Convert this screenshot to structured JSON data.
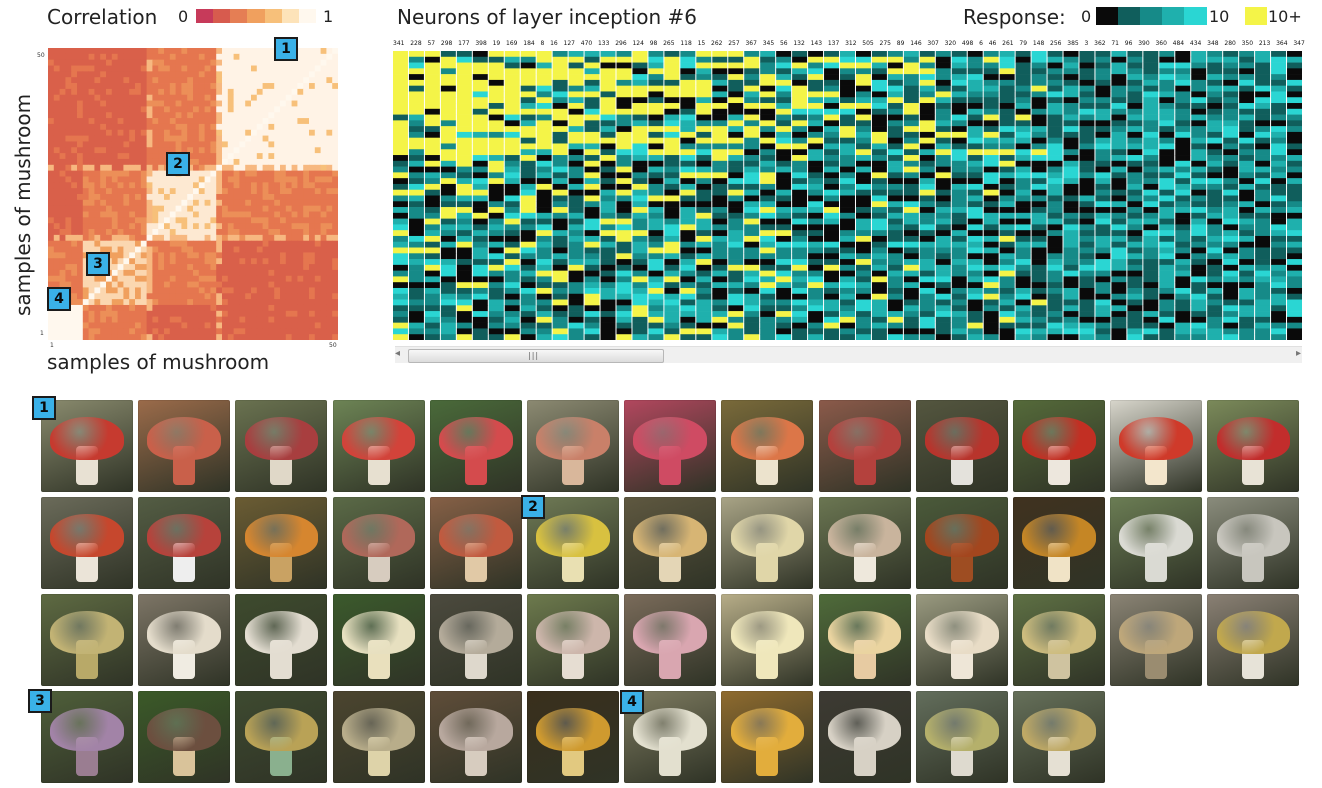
{
  "correlation": {
    "title": "Correlation",
    "scale_min": "0",
    "scale_max": "1",
    "colors": [
      "#c73a5a",
      "#d75b4e",
      "#e57e54",
      "#f0a05e",
      "#f7c07a",
      "#fde3b9",
      "#fff8ee"
    ],
    "x_label": "samples of mushroom",
    "y_label": "samples of mushroom",
    "x_tick_start": "1",
    "x_tick_end": "50",
    "y_tick_top": "50",
    "y_tick_bottom": "1"
  },
  "neurons": {
    "title": "Neurons of layer inception #6",
    "response_label": "Response:",
    "scale_zero": "0",
    "scale_ten": "10",
    "scale_plus": "10+",
    "colors": [
      "#0a0a0a",
      "#105e5c",
      "#168a88",
      "#1fb0ad",
      "#2ad6d3",
      "#f4f448"
    ],
    "ids": [
      "341",
      "228",
      "57",
      "298",
      "177",
      "398",
      "19",
      "169",
      "184",
      "8",
      "16",
      "127",
      "470",
      "133",
      "296",
      "124",
      "98",
      "265",
      "118",
      "15",
      "262",
      "257",
      "367",
      "345",
      "56",
      "132",
      "143",
      "137",
      "312",
      "505",
      "275",
      "89",
      "146",
      "307",
      "320",
      "498",
      "6",
      "46",
      "261",
      "79",
      "148",
      "256",
      "385",
      "3",
      "362",
      "71",
      "96",
      "390",
      "360",
      "484",
      "434",
      "348",
      "280",
      "350",
      "213",
      "364",
      "347"
    ]
  },
  "badges": [
    "1",
    "2",
    "3",
    "4"
  ],
  "gallery": {
    "rows": [
      [
        {
          "cap": "#c63a2f",
          "stem": "#e8e1d3",
          "bg": "#8a8b6e"
        },
        {
          "cap": "#c9604a",
          "stem": "#c9604a",
          "bg": "#9b6b4a"
        },
        {
          "cap": "#a83e3f",
          "stem": "#e0d8c8",
          "bg": "#6a7250"
        },
        {
          "cap": "#d2433a",
          "stem": "#e7e0d0",
          "bg": "#6d8455"
        },
        {
          "cap": "#d44b4d",
          "stem": "#d44b4d",
          "bg": "#4a6a3a"
        },
        {
          "cap": "#c98069",
          "stem": "#d9b79b",
          "bg": "#8c8a72"
        },
        {
          "cap": "#cf4b63",
          "stem": "#cf4b63",
          "bg": "#b2475e"
        },
        {
          "cap": "#dc7648",
          "stem": "#ece3cd",
          "bg": "#7a6a3a"
        },
        {
          "cap": "#b4413d",
          "stem": "#b4413d",
          "bg": "#8b5a4a"
        },
        {
          "cap": "#b8342c",
          "stem": "#e4e2dc",
          "bg": "#54563f"
        },
        {
          "cap": "#c22f23",
          "stem": "#ede7dd",
          "bg": "#556a3a"
        },
        {
          "cap": "#cf3a2a",
          "stem": "#f3e6cc",
          "bg": "#d8d6cc"
        },
        {
          "cap": "#c22d2c",
          "stem": "#e8e3d6",
          "bg": "#7b8a5a"
        }
      ],
      [
        {
          "cap": "#c6472d",
          "stem": "#ebe4d8",
          "bg": "#6b6b5a"
        },
        {
          "cap": "#b7423b",
          "stem": "#eeeeee",
          "bg": "#545d44"
        },
        {
          "cap": "#d6862f",
          "stem": "#c9a263",
          "bg": "#6b5c33"
        },
        {
          "cap": "#b0685a",
          "stem": "#d7ccbf",
          "bg": "#5b6a47"
        },
        {
          "cap": "#c15a3f",
          "stem": "#e1c9a6",
          "bg": "#866046"
        },
        {
          "cap": "#d8c140",
          "stem": "#e9e0b2",
          "bg": "#6f7a55"
        },
        {
          "cap": "#d7b574",
          "stem": "#e4d6b6",
          "bg": "#5f5840"
        },
        {
          "cap": "#e0d6a8",
          "stem": "#e0d6a8",
          "bg": "#a9a486"
        },
        {
          "cap": "#c9b49d",
          "stem": "#eee8dc",
          "bg": "#6b7652"
        },
        {
          "cap": "#a3461e",
          "stem": "#9e4d22",
          "bg": "#4b5a3a"
        },
        {
          "cap": "#c58625",
          "stem": "#f0e3c6",
          "bg": "#40321f"
        },
        {
          "cap": "#dadad3",
          "stem": "#dadad3",
          "bg": "#6b7d54"
        },
        {
          "cap": "#c8c6be",
          "stem": "#c8c6be",
          "bg": "#8a8c7c"
        }
      ],
      [
        {
          "cap": "#c2b374",
          "stem": "#b8a968",
          "bg": "#5e6a42"
        },
        {
          "cap": "#e4dccb",
          "stem": "#f0ece2",
          "bg": "#7d7566"
        },
        {
          "cap": "#e3ddd1",
          "stem": "#e3ddd1",
          "bg": "#3e4b2e"
        },
        {
          "cap": "#e7e0c0",
          "stem": "#e9e0bd",
          "bg": "#3b5a2c"
        },
        {
          "cap": "#b4ab9a",
          "stem": "#ded8cc",
          "bg": "#4c4a3e"
        },
        {
          "cap": "#cdb6ab",
          "stem": "#e6ddd2",
          "bg": "#6d7a4d"
        },
        {
          "cap": "#d9a6b0",
          "stem": "#d9a6b0",
          "bg": "#7a6b5a"
        },
        {
          "cap": "#efe7bb",
          "stem": "#efe7bb",
          "bg": "#b7ad88"
        },
        {
          "cap": "#ead4a0",
          "stem": "#e7cba2",
          "bg": "#4f6b3a"
        },
        {
          "cap": "#e8dcc6",
          "stem": "#eee6d7",
          "bg": "#9a9a80"
        },
        {
          "cap": "#cdbc7e",
          "stem": "#cfc3a0",
          "bg": "#5e7044"
        },
        {
          "cap": "#bea77a",
          "stem": "#9a8c70",
          "bg": "#8b8475"
        },
        {
          "cap": "#c1a84d",
          "stem": "#e7e3d8",
          "bg": "#8a8074"
        }
      ],
      [
        {
          "cap": "#a283a7",
          "stem": "#9a7d91",
          "bg": "#4f5f3a"
        },
        {
          "cap": "#6c4f3f",
          "stem": "#d9c39a",
          "bg": "#3b5a28"
        },
        {
          "cap": "#b9a256",
          "stem": "#8ab08e",
          "bg": "#3e4a30"
        },
        {
          "cap": "#b8ad8a",
          "stem": "#ded3a9",
          "bg": "#4c452f"
        },
        {
          "cap": "#b8a89e",
          "stem": "#d7ccbf",
          "bg": "#5f4d39"
        },
        {
          "cap": "#cf9a2f",
          "stem": "#e2c980",
          "bg": "#3a2f1c"
        },
        {
          "cap": "#e3e0cf",
          "stem": "#e3e0cf",
          "bg": "#7e7b60"
        },
        {
          "cap": "#e2ad3c",
          "stem": "#e2ad3c",
          "bg": "#8f6b2e"
        },
        {
          "cap": "#d7d1c5",
          "stem": "#d7d1c5",
          "bg": "#3d3a33"
        },
        {
          "cap": "#b5b06b",
          "stem": "#dedacf",
          "bg": "#636e5c"
        },
        {
          "cap": "#bfa965",
          "stem": "#e5e0d3",
          "bg": "#66705a"
        }
      ]
    ]
  }
}
